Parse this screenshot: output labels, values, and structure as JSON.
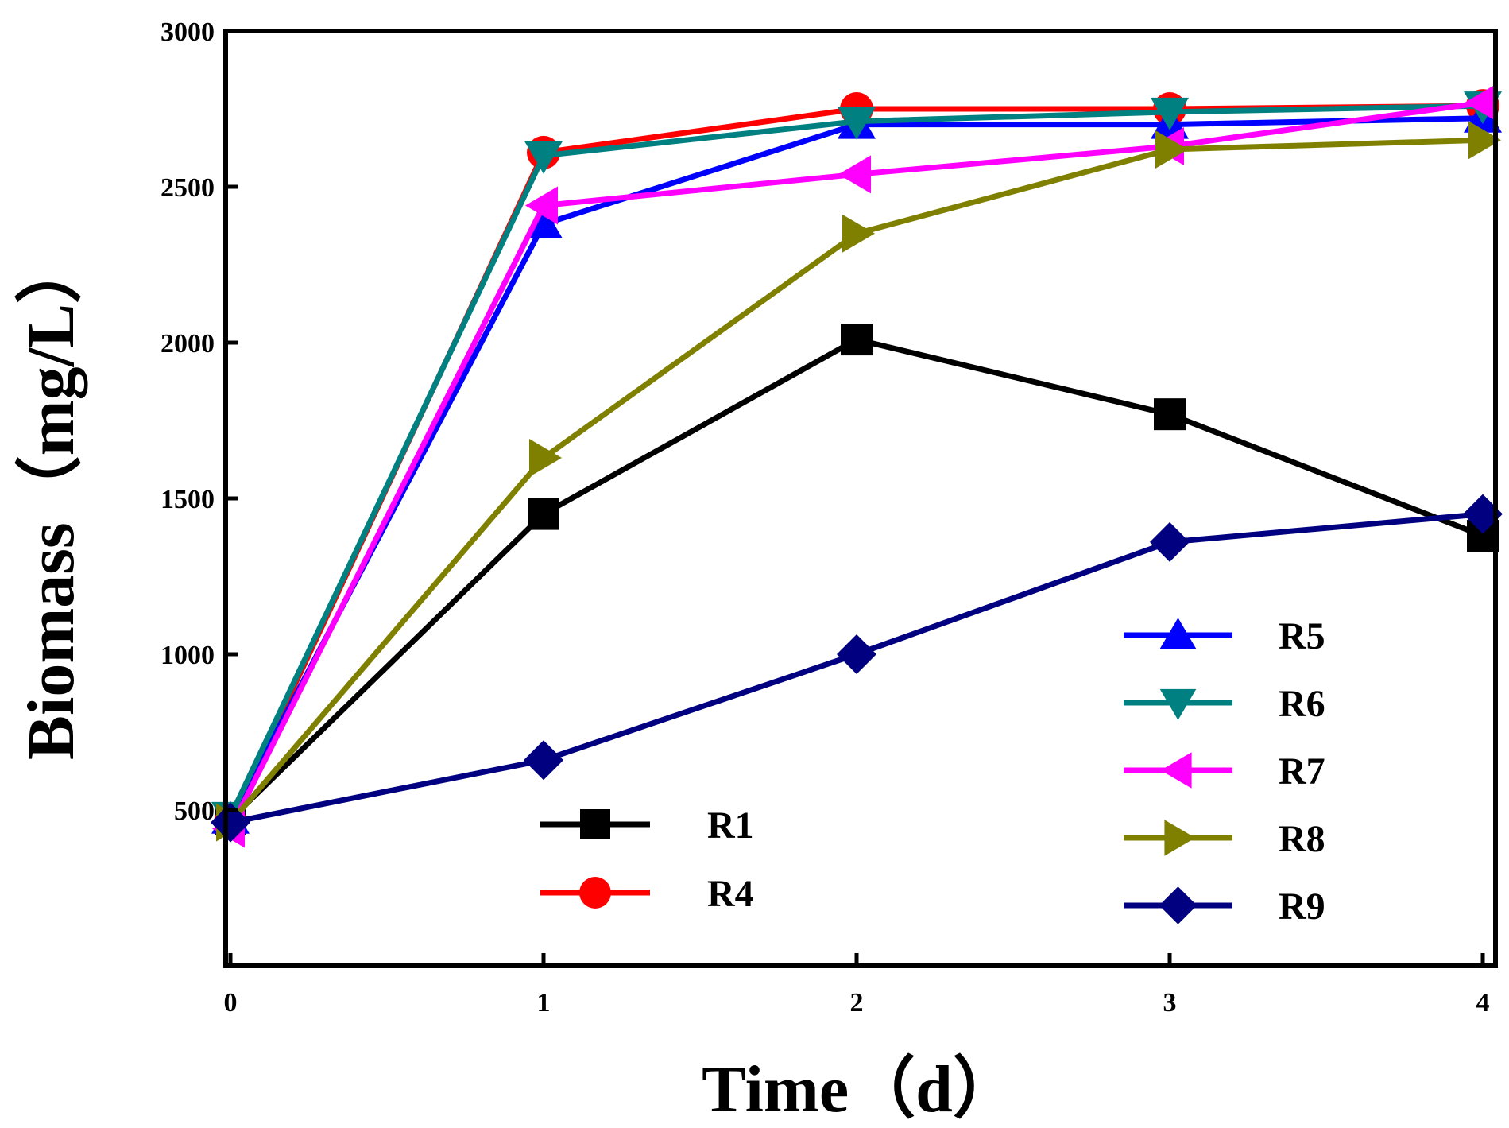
{
  "chart_data": {
    "type": "line",
    "title": "",
    "xlabel": "Time（d）",
    "ylabel": "Biomass（mg/L）",
    "xlim": [
      0,
      4
    ],
    "ylim": [
      0,
      3000
    ],
    "x_ticks": [
      "0",
      "1",
      "2",
      "3",
      "4"
    ],
    "y_ticks": [
      "500",
      "1000",
      "1500",
      "2000",
      "2500",
      "3000"
    ],
    "grid": false,
    "legend_groups": [
      "bottom-center",
      "bottom-right"
    ],
    "x": [
      0,
      1,
      2,
      3,
      4
    ],
    "series": [
      {
        "name": "R1",
        "color": "#000000",
        "marker": "square",
        "legend_group": 0,
        "values": [
          470,
          1450,
          2010,
          1770,
          1380
        ]
      },
      {
        "name": "R4",
        "color": "#ff0000",
        "marker": "circle",
        "legend_group": 0,
        "values": [
          460,
          2610,
          2750,
          2750,
          2760
        ]
      },
      {
        "name": "R5",
        "color": "#0000ff",
        "marker": "triangle-up",
        "legend_group": 1,
        "values": [
          470,
          2380,
          2700,
          2700,
          2720
        ]
      },
      {
        "name": "R6",
        "color": "#008080",
        "marker": "triangle-down",
        "legend_group": 1,
        "values": [
          480,
          2600,
          2710,
          2740,
          2760
        ]
      },
      {
        "name": "R7",
        "color": "#ff00ff",
        "marker": "triangle-left",
        "legend_group": 1,
        "values": [
          440,
          2440,
          2540,
          2630,
          2770
        ]
      },
      {
        "name": "R8",
        "color": "#808000",
        "marker": "triangle-right",
        "legend_group": 1,
        "values": [
          460,
          1630,
          2350,
          2620,
          2650
        ]
      },
      {
        "name": "R9",
        "color": "#000080",
        "marker": "diamond",
        "legend_group": 1,
        "values": [
          460,
          660,
          1000,
          1360,
          1450
        ]
      }
    ]
  }
}
